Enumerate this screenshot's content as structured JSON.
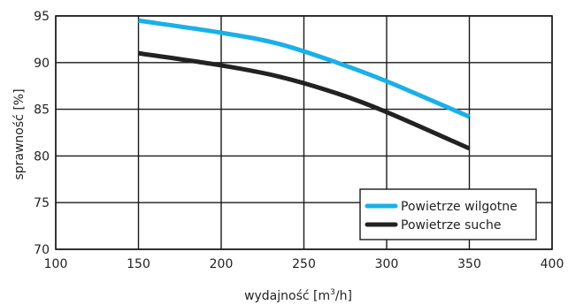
{
  "chart_data": {
    "type": "line",
    "xlabel_prefix": "wydajność [m",
    "xlabel_sup": "3",
    "xlabel_suffix": "/h]",
    "ylabel": "sprawność  [%]",
    "xlim": [
      100,
      400
    ],
    "ylim": [
      70,
      95
    ],
    "x_ticks": [
      "100",
      "150",
      "200",
      "250",
      "300",
      "350",
      "400"
    ],
    "y_ticks": [
      "70",
      "75",
      "80",
      "85",
      "90",
      "95"
    ],
    "grid": true,
    "legend_position": "bottom-right",
    "series": [
      {
        "name": "Powietrze wilgotne",
        "color": "#1ab0e8",
        "x": [
          150,
          200,
          235,
          270,
          300,
          350
        ],
        "y": [
          94.5,
          93.2,
          92.0,
          90.0,
          88.0,
          84.2
        ]
      },
      {
        "name": "Powietrze suche",
        "color": "#222222",
        "x": [
          150,
          200,
          235,
          270,
          300,
          350
        ],
        "y": [
          91.0,
          89.7,
          88.5,
          86.7,
          84.7,
          80.8
        ]
      }
    ]
  }
}
